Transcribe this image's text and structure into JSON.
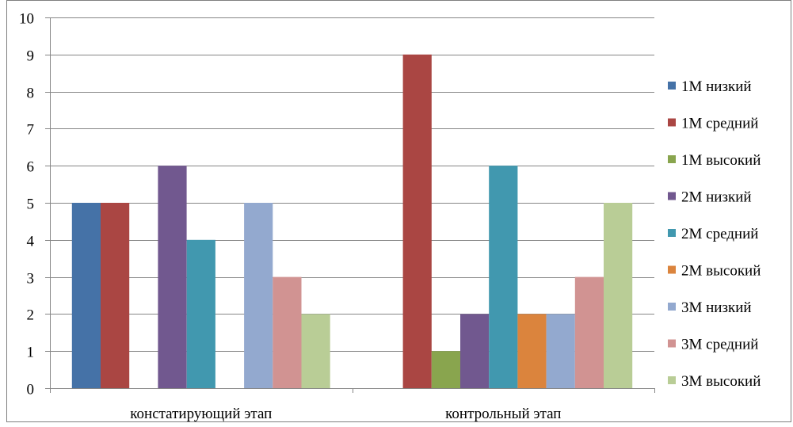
{
  "chart_data": {
    "type": "bar",
    "title": "",
    "xlabel": "",
    "ylabel": "",
    "ylim": [
      0,
      10
    ],
    "yticks": [
      "0",
      "1",
      "2",
      "3",
      "4",
      "5",
      "6",
      "7",
      "8",
      "9",
      "10"
    ],
    "grid": true,
    "legend_position": "right",
    "categories": [
      "констатирующий этап",
      "контрольный этап"
    ],
    "series": [
      {
        "name": "1М низкий",
        "color": "#4572A7",
        "values": [
          5,
          0
        ]
      },
      {
        "name": "1М средний",
        "color": "#AA4643",
        "values": [
          5,
          9
        ]
      },
      {
        "name": "1М высокий",
        "color": "#89A54E",
        "values": [
          0,
          1
        ]
      },
      {
        "name": "2М низкий",
        "color": "#71588F",
        "values": [
          6,
          2
        ]
      },
      {
        "name": "2М средний",
        "color": "#4198AF",
        "values": [
          4,
          6
        ]
      },
      {
        "name": "2М высокий",
        "color": "#DB843D",
        "values": [
          0,
          2
        ]
      },
      {
        "name": "3М низкий",
        "color": "#93A9CF",
        "values": [
          5,
          2
        ]
      },
      {
        "name": "3М средний",
        "color": "#D19392",
        "values": [
          3,
          3
        ]
      },
      {
        "name": "3М высокий",
        "color": "#B9CD96",
        "values": [
          2,
          5
        ]
      }
    ]
  }
}
